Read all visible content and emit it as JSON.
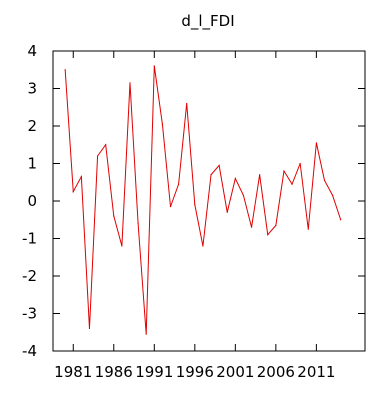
{
  "chart_data": {
    "type": "line",
    "title": "d_l_FDI",
    "xlabel": "",
    "ylabel": "",
    "xlim": [
      1978.5,
      2017
    ],
    "ylim": [
      -4,
      4
    ],
    "x_ticks": [
      1981,
      1986,
      1991,
      1996,
      2001,
      2006,
      2011
    ],
    "x_tick_labels": [
      "1981",
      "1986",
      "1991",
      "1996",
      "2001",
      "2006",
      "2011"
    ],
    "y_ticks": [
      -4,
      -3,
      -2,
      -1,
      0,
      1,
      2,
      3,
      4
    ],
    "y_tick_labels": [
      "-4",
      "-3",
      "-2",
      "-1",
      "0",
      "1",
      "2",
      "3",
      "4"
    ],
    "grid": false,
    "legend": "none",
    "line_color": "#e00000",
    "series": [
      {
        "x": [
          1980,
          1981,
          1982,
          1983,
          1984,
          1985,
          1986,
          1987,
          1988,
          1989,
          1990,
          1991,
          1992,
          1993,
          1994,
          1995,
          1996,
          1997,
          1998,
          1999,
          2000,
          2001,
          2002,
          2003,
          2004,
          2005,
          2006,
          2007,
          2008,
          2009,
          2010,
          2011,
          2012,
          2013,
          2014
        ],
        "values": [
          3.5,
          0.25,
          0.65,
          -3.4,
          1.2,
          1.5,
          -0.4,
          -1.2,
          3.15,
          -0.6,
          -3.55,
          3.6,
          2.05,
          -0.15,
          0.45,
          2.6,
          -0.1,
          -1.2,
          0.7,
          0.95,
          -0.3,
          0.6,
          0.15,
          -0.7,
          0.7,
          -0.9,
          -0.65,
          0.8,
          0.45,
          1.0,
          -0.75,
          1.55,
          0.55,
          0.15,
          -0.5
        ]
      }
    ]
  }
}
